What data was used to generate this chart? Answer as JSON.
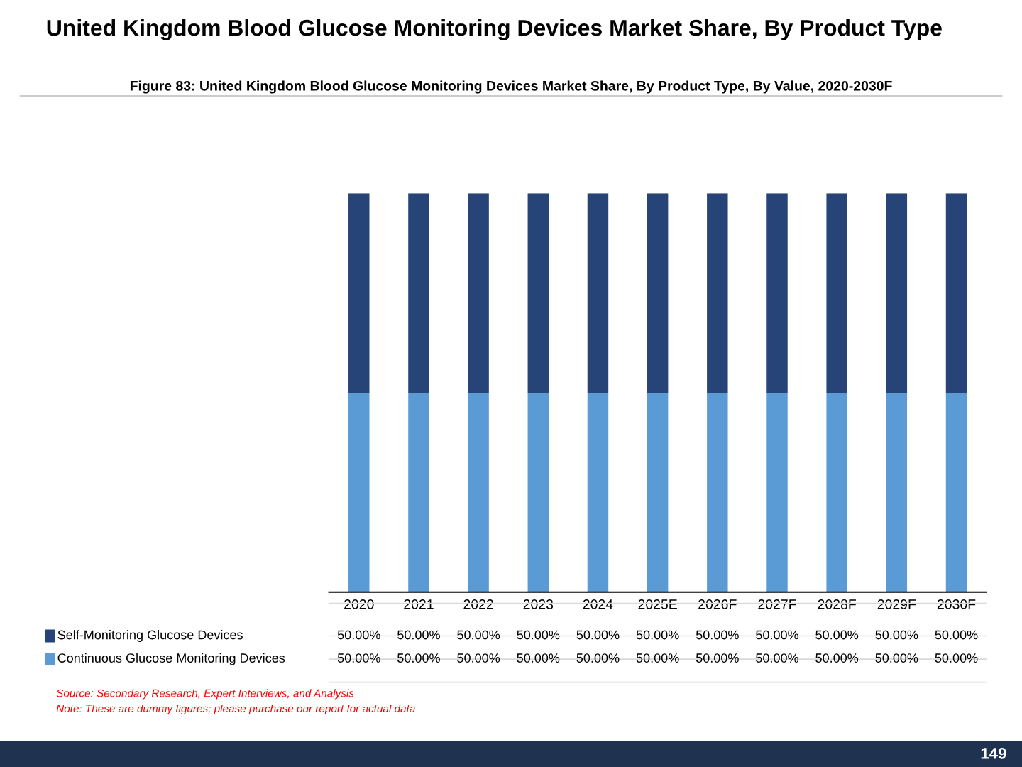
{
  "chart_data": {
    "type": "bar",
    "stacked": true,
    "title": "United Kingdom Blood Glucose Monitoring Devices Market Share, By Product Type",
    "subtitle": "Figure 83: United Kingdom Blood Glucose Monitoring Devices Market Share, By Product Type, By Value, 2020-2030F",
    "categories": [
      "2020",
      "2021",
      "2022",
      "2023",
      "2024",
      "2025E",
      "2026F",
      "2027F",
      "2028F",
      "2029F",
      "2030F"
    ],
    "series": [
      {
        "name": "Continuous Glucose Monitoring Devices",
        "color": "#5b9bd5",
        "values": [
          50,
          50,
          50,
          50,
          50,
          50,
          50,
          50,
          50,
          50,
          50
        ],
        "value_labels": [
          "50.00%",
          "50.00%",
          "50.00%",
          "50.00%",
          "50.00%",
          "50.00%",
          "50.00%",
          "50.00%",
          "50.00%",
          "50.00%",
          "50.00%"
        ]
      },
      {
        "name": "Self-Monitoring Glucose Devices",
        "color": "#264478",
        "values": [
          50,
          50,
          50,
          50,
          50,
          50,
          50,
          50,
          50,
          50,
          50
        ],
        "value_labels": [
          "50.00%",
          "50.00%",
          "50.00%",
          "50.00%",
          "50.00%",
          "50.00%",
          "50.00%",
          "50.00%",
          "50.00%",
          "50.00%",
          "50.00%"
        ]
      }
    ],
    "legend": "bottom",
    "tick_labels": "x",
    "annotations": [
      "Source: Secondary Research, Expert Interviews, and Analysis",
      "Note: These are dummy figures; please purchase our report for actual data",
      "149"
    ]
  }
}
